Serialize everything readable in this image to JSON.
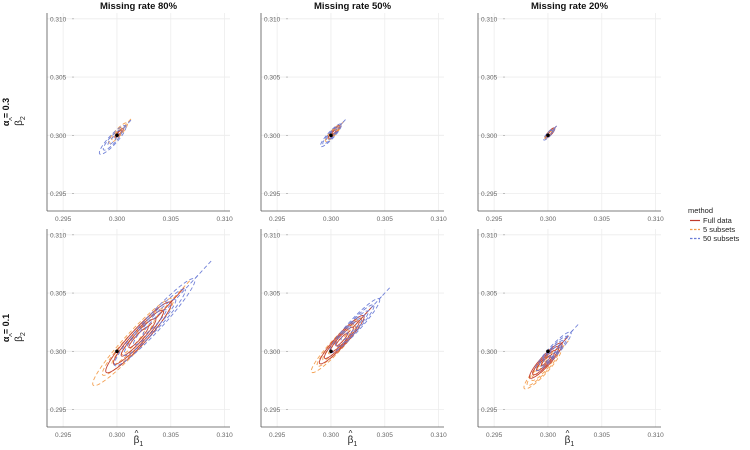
{
  "chart_data": {
    "type": "contour-facet",
    "columns": [
      "Missing rate 80%",
      "Missing rate 50%",
      "Missing rate 20%"
    ],
    "rows": [
      "α = 0.3",
      "α = 0.1"
    ],
    "x_tick_labels": [
      "0.295",
      "0.300",
      "0.305",
      "0.310"
    ],
    "y_tick_labels": [
      "0.295",
      "0.300",
      "0.305",
      "0.310"
    ],
    "x_ticks": [
      0.295,
      0.3,
      0.305,
      0.31
    ],
    "y_ticks": [
      0.295,
      0.3,
      0.305,
      0.31
    ],
    "xlim": [
      0.2935,
      0.3105
    ],
    "ylim": [
      0.2935,
      0.3105
    ],
    "xlabel_base": "β",
    "xlabel_sub": "1",
    "ylabel_base": "β",
    "ylabel_sub": "2",
    "hat": "^",
    "true_point": [
      0.3,
      0.3
    ],
    "legend": {
      "title": "method",
      "items": [
        {
          "name": "Full data",
          "color": "#C0392B",
          "dash": "solid"
        },
        {
          "name": "5 subsets",
          "color": "#F39C4A",
          "dash": "dashed"
        },
        {
          "name": "50 subsets",
          "color": "#6A7BD6",
          "dash": "dashed"
        }
      ]
    },
    "panels": [
      {
        "row": 0,
        "col": 0,
        "ellipses": [
          {
            "method": "Full data",
            "cx": 0.3002,
            "cy": 0.3002,
            "levels": [
              [
                0.0006,
                0.00018
              ],
              [
                0.0011,
                0.0003
              ]
            ]
          },
          {
            "method": "5 subsets",
            "cx": 0.3001,
            "cy": 0.3002,
            "levels": [
              [
                0.0008,
                0.00022
              ],
              [
                0.0016,
                0.0004
              ],
              [
                0.0024,
                0.0006
              ]
            ]
          },
          {
            "method": "50 subsets",
            "cx": 0.2996,
            "cy": 0.2996,
            "levels": [
              [
                0.0012,
                0.0003
              ],
              [
                0.0024,
                0.0006
              ],
              [
                0.0034,
                0.0008
              ]
            ]
          }
        ]
      },
      {
        "row": 0,
        "col": 1,
        "ellipses": [
          {
            "method": "Full data",
            "cx": 0.3003,
            "cy": 0.3003,
            "levels": [
              [
                0.0005,
                0.00015
              ],
              [
                0.0011,
                0.0003
              ],
              [
                0.0015,
                0.0004
              ]
            ]
          },
          {
            "method": "5 subsets",
            "cx": 0.3002,
            "cy": 0.3002,
            "levels": [
              [
                0.0008,
                0.0002
              ],
              [
                0.0014,
                0.00035
              ],
              [
                0.002,
                0.0005
              ]
            ]
          },
          {
            "method": "50 subsets",
            "cx": 0.3,
            "cy": 0.3,
            "levels": [
              [
                0.0012,
                0.0003
              ],
              [
                0.0021,
                0.00045
              ],
              [
                0.0027,
                0.0006
              ]
            ]
          }
        ]
      },
      {
        "row": 0,
        "col": 2,
        "ellipses": [
          {
            "method": "Full data",
            "cx": 0.3002,
            "cy": 0.3002,
            "levels": [
              [
                0.0005,
                0.00015
              ],
              [
                0.0009,
                0.00025
              ],
              [
                0.0012,
                0.00035
              ]
            ]
          },
          {
            "method": "5 subsets",
            "cx": 0.3001,
            "cy": 0.3001,
            "levels": [
              [
                0.0007,
                0.0002
              ],
              [
                0.0011,
                0.0003
              ]
            ]
          },
          {
            "method": "50 subsets",
            "cx": 0.3001,
            "cy": 0.3001,
            "levels": [
              [
                0.0009,
                0.00025
              ],
              [
                0.0014,
                0.00035
              ]
            ]
          }
        ]
      },
      {
        "row": 1,
        "col": 0,
        "ellipses": [
          {
            "method": "5 subsets",
            "cx": 0.3015,
            "cy": 0.3008,
            "levels": [
              [
                0.003,
                0.0005
              ],
              [
                0.0055,
                0.0009
              ],
              [
                0.008,
                0.0013
              ],
              [
                0.0105,
                0.0016
              ]
            ]
          },
          {
            "method": "Full data",
            "cx": 0.302,
            "cy": 0.3012,
            "levels": [
              [
                0.0025,
                0.00045
              ],
              [
                0.0045,
                0.0008
              ],
              [
                0.0065,
                0.0011
              ],
              [
                0.0085,
                0.0014
              ]
            ]
          },
          {
            "method": "50 subsets",
            "cx": 0.3035,
            "cy": 0.3025,
            "levels": [
              [
                0.003,
                0.0005
              ],
              [
                0.0055,
                0.0009
              ],
              [
                0.008,
                0.0012
              ],
              [
                0.0105,
                0.0015
              ]
            ]
          }
        ]
      },
      {
        "row": 1,
        "col": 1,
        "ellipses": [
          {
            "method": "5 subsets",
            "cx": 0.3005,
            "cy": 0.3005,
            "levels": [
              [
                0.002,
                0.0004
              ],
              [
                0.0035,
                0.0007
              ],
              [
                0.005,
                0.0009
              ],
              [
                0.0065,
                0.0011
              ]
            ]
          },
          {
            "method": "Full data",
            "cx": 0.301,
            "cy": 0.301,
            "levels": [
              [
                0.0015,
                0.0003
              ],
              [
                0.003,
                0.0006
              ],
              [
                0.0045,
                0.0008
              ],
              [
                0.0058,
                0.001
              ]
            ]
          },
          {
            "method": "50 subsets",
            "cx": 0.3022,
            "cy": 0.3022,
            "levels": [
              [
                0.002,
                0.0004
              ],
              [
                0.0035,
                0.0007
              ],
              [
                0.005,
                0.0009
              ],
              [
                0.0065,
                0.0011
              ]
            ]
          }
        ]
      },
      {
        "row": 1,
        "col": 2,
        "ellipses": [
          {
            "method": "5 subsets",
            "cx": 0.2995,
            "cy": 0.2985,
            "levels": [
              [
                0.0015,
                0.0003
              ],
              [
                0.0028,
                0.0006
              ],
              [
                0.004,
                0.0008
              ],
              [
                0.0048,
                0.001
              ]
            ]
          },
          {
            "method": "Full data",
            "cx": 0.2998,
            "cy": 0.2992,
            "levels": [
              [
                0.0012,
                0.00025
              ],
              [
                0.0024,
                0.0005
              ],
              [
                0.0034,
                0.0007
              ],
              [
                0.0042,
                0.0009
              ]
            ]
          },
          {
            "method": "50 subsets",
            "cx": 0.3005,
            "cy": 0.3,
            "levels": [
              [
                0.0014,
                0.0003
              ],
              [
                0.0026,
                0.0005
              ],
              [
                0.0036,
                0.0007
              ],
              [
                0.0046,
                0.0009
              ]
            ]
          }
        ]
      }
    ]
  }
}
